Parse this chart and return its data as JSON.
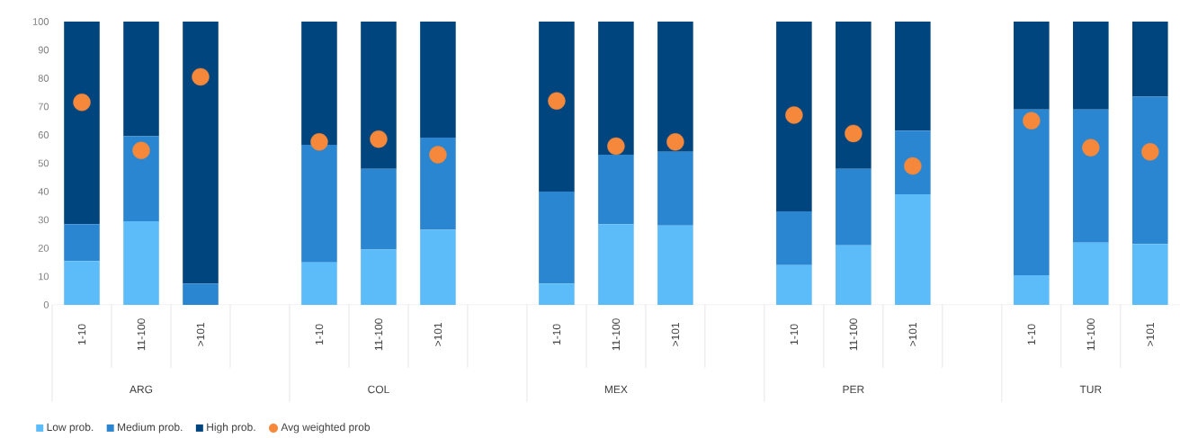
{
  "chart_data": {
    "type": "bar",
    "stacked": true,
    "categories": [
      "1-10",
      "11-100",
      ">101",
      null,
      "1-10",
      "11-100",
      ">101",
      null,
      "1-10",
      "11-100",
      ">101",
      null,
      "1-10",
      "11-100",
      ">101",
      null,
      "1-10",
      "11-100",
      ">101"
    ],
    "series": [
      {
        "name": "Low prob.",
        "color": "#5bbcf9",
        "values": [
          15.5,
          29.5,
          0,
          null,
          15,
          19.5,
          26.5,
          null,
          7.5,
          28.5,
          28,
          null,
          14,
          21,
          39,
          null,
          10.5,
          22,
          21.5
        ]
      },
      {
        "name": "Medium prob.",
        "color": "#2a86d1",
        "values": [
          13,
          30,
          7.5,
          null,
          41.5,
          28.5,
          32.5,
          null,
          32.5,
          24.5,
          26,
          null,
          19,
          27,
          22.5,
          null,
          58.5,
          47,
          52
        ]
      },
      {
        "name": "High prob.",
        "color": "#01457f",
        "values": [
          71.5,
          40.5,
          92.5,
          null,
          43.5,
          52,
          41,
          null,
          60,
          47,
          46,
          null,
          67,
          52,
          38.5,
          null,
          31,
          31,
          26.5
        ]
      },
      {
        "name": "Avg weighted prob",
        "type": "scatter",
        "marker": "circle",
        "color": "#f5883a",
        "values": [
          71.5,
          54.5,
          80.5,
          null,
          57.5,
          58.5,
          53,
          null,
          72,
          56,
          57.5,
          null,
          67,
          60.5,
          49,
          null,
          65,
          55.5,
          54
        ]
      }
    ],
    "ylim": [
      0,
      100
    ],
    "yticks": [
      0,
      10,
      20,
      30,
      40,
      50,
      60,
      70,
      80,
      90,
      100
    ],
    "legend": "bottom left",
    "annotations": [
      "ARG",
      "COL",
      "MEX",
      "PER",
      "TUR"
    ]
  }
}
